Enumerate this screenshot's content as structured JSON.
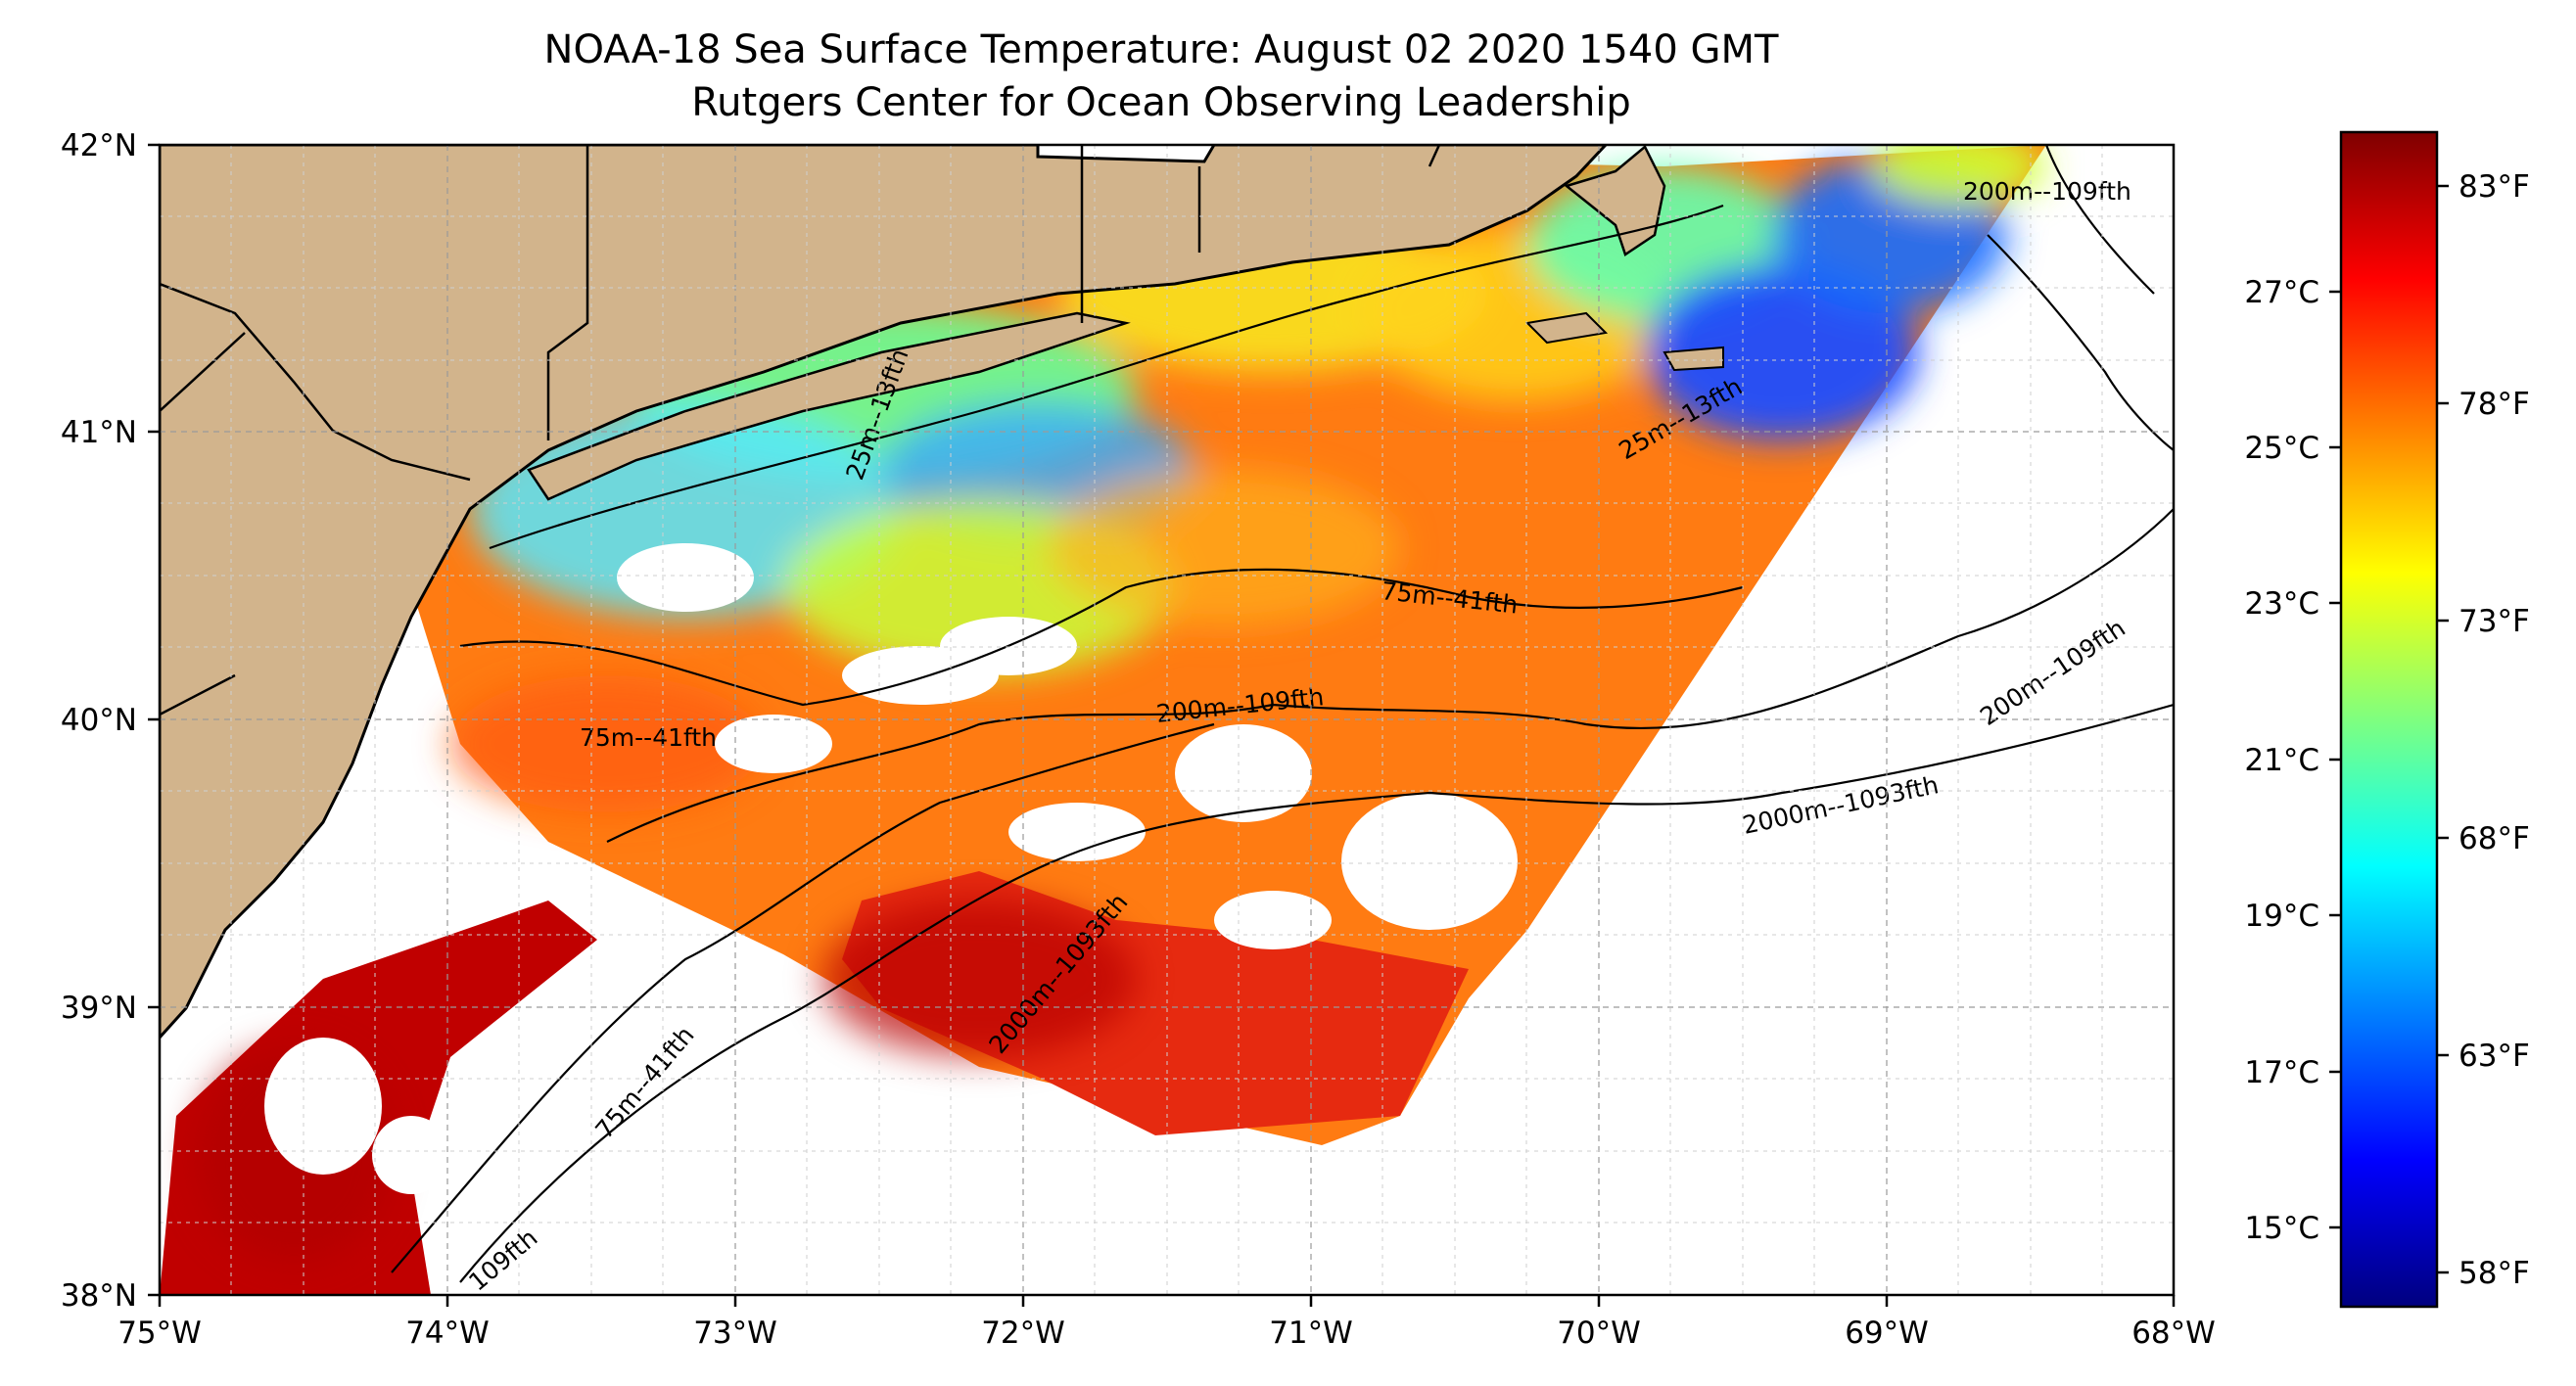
{
  "title_line1": "NOAA-18 Sea Surface Temperature: August 02 2020 1540 GMT",
  "title_line2": "Rutgers Center for Ocean Observing Leadership",
  "map": {
    "lon_range": [
      -75,
      -68
    ],
    "lat_range": [
      38,
      42
    ],
    "lon_labels": [
      "75°W",
      "74°W",
      "73°W",
      "72°W",
      "71°W",
      "70°W",
      "69°W",
      "68°W"
    ],
    "lat_labels": [
      "42°N",
      "41°N",
      "40°N",
      "39°N",
      "38°N"
    ],
    "gridlines": true,
    "land_color": "#d2b48c",
    "missing_data_color": "#ffffff",
    "isobath_labels": [
      "200m--109fth",
      "75m--41fth",
      "75m--41fth",
      "200m--109fth",
      "200m--109fth",
      "2000m--1093fth",
      "2000m--1093fth",
      "75m--41fth",
      "109fth",
      "25m--13fth",
      "25m--13fth",
      "13fth"
    ]
  },
  "colorbar": {
    "colormap": "jet",
    "celsius_labels": [
      "27°C",
      "25°C",
      "23°C",
      "21°C",
      "19°C",
      "17°C",
      "15°C"
    ],
    "fahrenheit_labels": [
      "83°F",
      "78°F",
      "73°F",
      "68°F",
      "63°F",
      "58°F"
    ]
  }
}
